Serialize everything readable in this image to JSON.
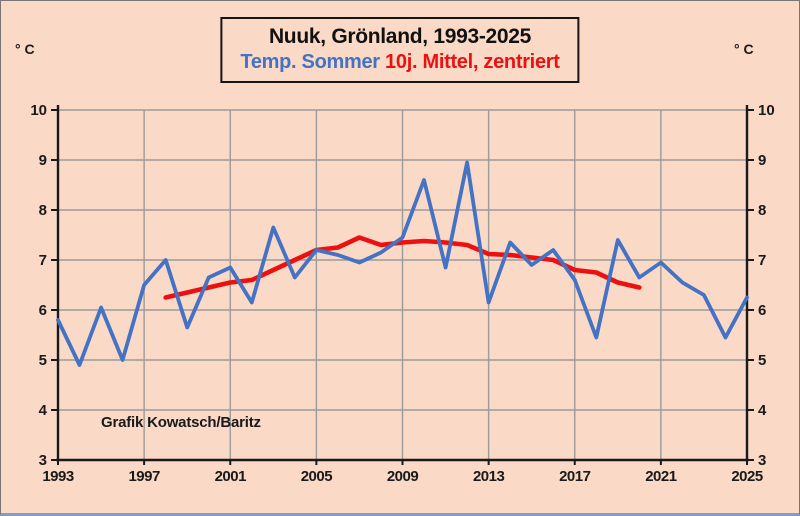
{
  "title": "Nuuk, Grönland, 1993-2025",
  "legend": {
    "series_temp_label": "Temp. Sommer",
    "series_mean_label": "10j. Mittel, zentriert"
  },
  "unit_label_left": "° C",
  "unit_label_right": "° C",
  "annotation": "Grafik Kowatsch/Baritz",
  "colors": {
    "background": "#fad9c6",
    "blue": "#4472c4",
    "red": "#ec1111",
    "grid": "#9b9b9b",
    "axis": "#1a1a1a",
    "text": "#1a1a1a"
  },
  "chart_data": {
    "type": "line",
    "title": "Nuuk, Grönland, 1993-2025",
    "xlabel": "",
    "ylabel": "° C",
    "xlim": [
      1993,
      2025
    ],
    "ylim": [
      3,
      10
    ],
    "x_tick_labels": [
      1993,
      1997,
      2001,
      2005,
      2009,
      2013,
      2017,
      2021,
      2025
    ],
    "y_tick_labels": [
      3,
      4,
      5,
      6,
      7,
      8,
      9,
      10
    ],
    "grid": true,
    "legend_position": "in-title-box",
    "series": [
      {
        "name": "Temp. Sommer",
        "color_key": "blue",
        "x_start": 1993,
        "x_step": 1,
        "values": [
          5.8,
          4.9,
          6.05,
          5.0,
          6.5,
          7.0,
          5.65,
          6.65,
          6.85,
          6.15,
          7.65,
          6.65,
          7.2,
          7.1,
          6.95,
          7.15,
          7.45,
          8.6,
          6.85,
          8.95,
          6.15,
          7.35,
          6.9,
          7.2,
          6.6,
          5.45,
          7.4,
          6.65,
          6.95,
          6.55,
          6.3,
          5.45,
          6.25
        ]
      },
      {
        "name": "10j. Mittel, zentriert",
        "color_key": "red",
        "x_start": 1998,
        "x_step": 1,
        "values": [
          6.25,
          6.35,
          6.45,
          6.55,
          6.6,
          6.8,
          7.0,
          7.2,
          7.25,
          7.45,
          7.3,
          7.35,
          7.38,
          7.35,
          7.3,
          7.12,
          7.1,
          7.05,
          7.0,
          6.8,
          6.75,
          6.55,
          6.45
        ]
      }
    ]
  }
}
